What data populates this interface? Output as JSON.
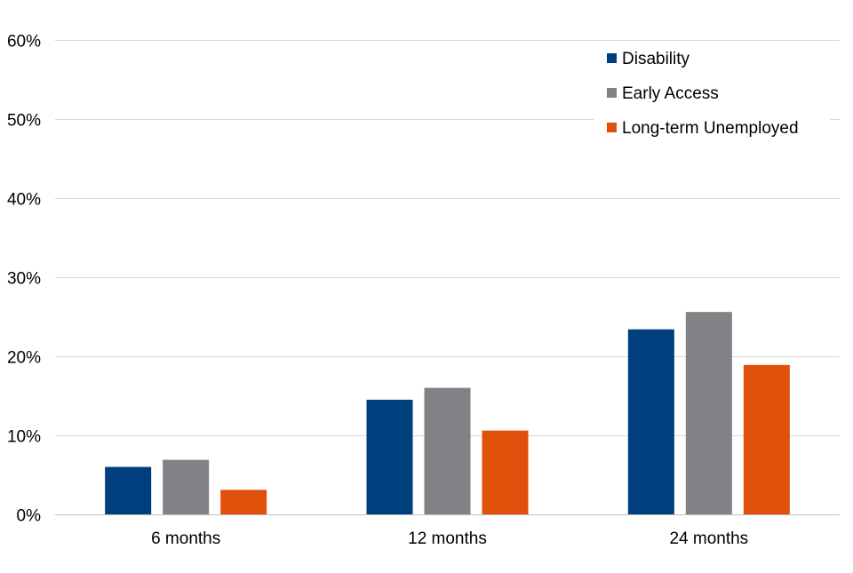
{
  "chart_data": {
    "type": "bar",
    "title": "",
    "xlabel": "",
    "ylabel": "",
    "categories": [
      "6 months",
      "12 months",
      "24 months"
    ],
    "series": [
      {
        "name": "Disability",
        "color": "#003f7d",
        "values": [
          6.0,
          14.5,
          23.4
        ]
      },
      {
        "name": "Early Access",
        "color": "#818285",
        "values": [
          6.9,
          16.0,
          25.6
        ]
      },
      {
        "name": "Long-term Unemployed",
        "color": "#e0500a",
        "values": [
          3.1,
          10.6,
          18.9
        ]
      }
    ],
    "ylim": [
      0,
      60
    ],
    "yticks": [
      0,
      10,
      20,
      30,
      40,
      50,
      60
    ],
    "ytick_labels": [
      "0%",
      "10%",
      "20%",
      "30%",
      "40%",
      "50%",
      "60%"
    ],
    "grid": true,
    "legend_position": "top-right"
  }
}
